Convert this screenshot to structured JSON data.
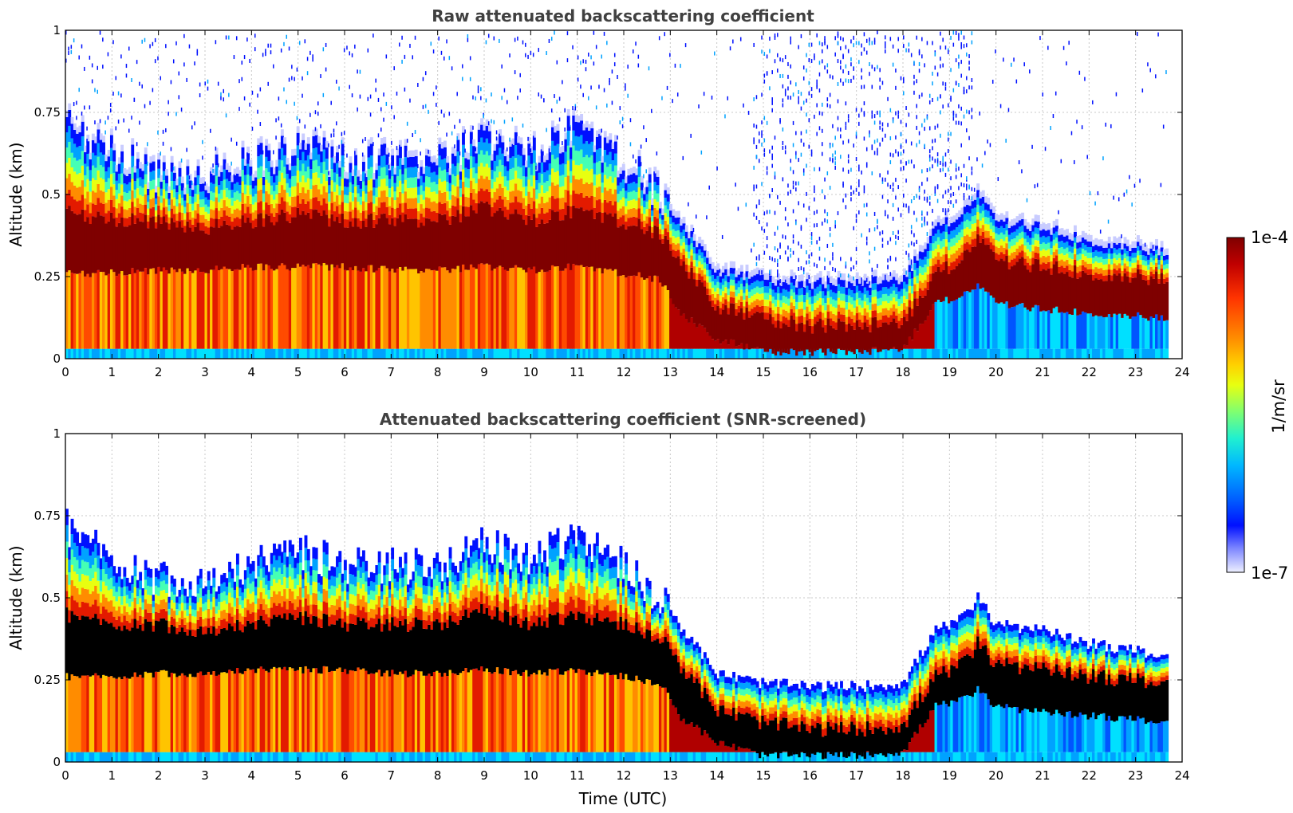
{
  "chart_data": [
    {
      "type": "heatmap",
      "title": "Raw attenuated backscattering coefficient",
      "xlabel": "",
      "ylabel": "Altitude (km)",
      "xlim": [
        0,
        24
      ],
      "ylim": [
        0,
        1
      ],
      "xticks": [
        "0",
        "1",
        "2",
        "3",
        "4",
        "5",
        "6",
        "7",
        "8",
        "9",
        "10",
        "11",
        "12",
        "13",
        "14",
        "15",
        "16",
        "17",
        "18",
        "19",
        "20",
        "21",
        "22",
        "23",
        "24"
      ],
      "yticks": [
        "0",
        "0.25",
        "0.5",
        "0.75",
        "1"
      ],
      "ytick_values": [
        0,
        0.25,
        0.5,
        0.75,
        1
      ],
      "grid": true,
      "screened": false,
      "data_end_hour": 23.7,
      "profile": {
        "hours": [
          0,
          1,
          2,
          3,
          4,
          5,
          6,
          7,
          8,
          9,
          10,
          11,
          12,
          12.8,
          13.2,
          14,
          15,
          16,
          17,
          18,
          18.7,
          19.3,
          19.6,
          20,
          21,
          22,
          23,
          23.7
        ],
        "top_km": [
          0.72,
          0.62,
          0.56,
          0.56,
          0.6,
          0.64,
          0.6,
          0.6,
          0.6,
          0.66,
          0.62,
          0.7,
          0.6,
          0.5,
          0.42,
          0.27,
          0.24,
          0.23,
          0.23,
          0.24,
          0.4,
          0.44,
          0.5,
          0.42,
          0.4,
          0.36,
          0.34,
          0.32
        ],
        "core_top_km": [
          0.45,
          0.42,
          0.42,
          0.4,
          0.42,
          0.44,
          0.42,
          0.42,
          0.42,
          0.46,
          0.42,
          0.45,
          0.42,
          0.38,
          0.3,
          0.16,
          0.12,
          0.1,
          0.1,
          0.11,
          0.26,
          0.3,
          0.36,
          0.3,
          0.28,
          0.26,
          0.25,
          0.24
        ],
        "core_bot_km": [
          0.26,
          0.26,
          0.27,
          0.27,
          0.28,
          0.28,
          0.28,
          0.27,
          0.27,
          0.28,
          0.27,
          0.28,
          0.26,
          0.24,
          0.14,
          0.06,
          0.02,
          0.02,
          0.02,
          0.03,
          0.17,
          0.19,
          0.22,
          0.17,
          0.15,
          0.14,
          0.13,
          0.12
        ]
      }
    },
    {
      "type": "heatmap",
      "title": "Attenuated backscattering coefficient (SNR-screened)",
      "xlabel": "Time (UTC)",
      "ylabel": "Altitude (km)",
      "xlim": [
        0,
        24
      ],
      "ylim": [
        0,
        1
      ],
      "xticks": [
        "0",
        "1",
        "2",
        "3",
        "4",
        "5",
        "6",
        "7",
        "8",
        "9",
        "10",
        "11",
        "12",
        "13",
        "14",
        "15",
        "16",
        "17",
        "18",
        "19",
        "20",
        "21",
        "22",
        "23",
        "24"
      ],
      "yticks": [
        "0",
        "0.25",
        "0.5",
        "0.75",
        "1"
      ],
      "ytick_values": [
        0,
        0.25,
        0.5,
        0.75,
        1
      ],
      "grid": true,
      "screened": true,
      "data_end_hour": 23.7
    }
  ],
  "colorbar": {
    "label": "1/m/sr",
    "max_label": "1e-4",
    "min_label": "1e-7",
    "colors": [
      "#7f0000",
      "#b00000",
      "#e31a00",
      "#ff4b00",
      "#ff8c00",
      "#ffc400",
      "#e8ff10",
      "#9dff5a",
      "#45ffb4",
      "#00e0ff",
      "#00a2ff",
      "#0055ff",
      "#0010ff",
      "#6f78ff",
      "#c9ccff",
      "#eef0ff"
    ]
  }
}
